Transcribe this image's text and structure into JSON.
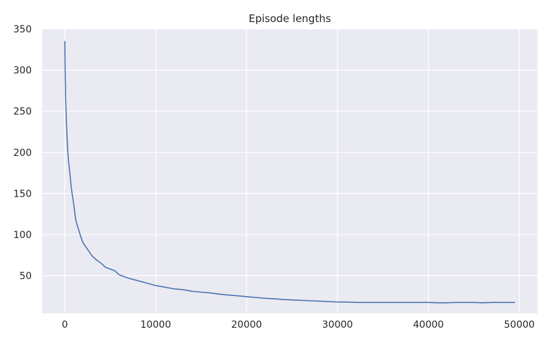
{
  "chart_data": {
    "type": "line",
    "title": "Episode lengths",
    "xlabel": "",
    "ylabel": "",
    "xlim": [
      -2500,
      52000
    ],
    "ylim": [
      4.3,
      350
    ],
    "xticks": [
      0,
      10000,
      20000,
      30000,
      40000,
      50000
    ],
    "xtick_labels": [
      "0",
      "10000",
      "20000",
      "30000",
      "40000",
      "50000"
    ],
    "yticks": [
      50,
      100,
      150,
      200,
      250,
      300,
      350
    ],
    "ytick_labels": [
      "50",
      "100",
      "150",
      "200",
      "250",
      "300",
      "350"
    ],
    "grid": true,
    "colors": {
      "background": "#eaeaf2",
      "grid": "#ffffff",
      "line": "#4c72b0",
      "text": "#262626"
    },
    "series": [
      {
        "name": "",
        "x": [
          0,
          50,
          100,
          150,
          200,
          300,
          400,
          500,
          600,
          700,
          800,
          900,
          1000,
          1200,
          1400,
          1600,
          1800,
          2000,
          2500,
          3000,
          3500,
          4000,
          4500,
          5000,
          5500,
          6000,
          7000,
          8000,
          9000,
          10000,
          11000,
          12000,
          13000,
          14000,
          15000,
          16000,
          17000,
          18000,
          19000,
          20000,
          21000,
          22000,
          23000,
          24000,
          25000,
          26000,
          27000,
          28000,
          29000,
          30000,
          31000,
          32000,
          33000,
          34000,
          35000,
          36000,
          37000,
          38000,
          39000,
          40000,
          41000,
          42000,
          43000,
          44000,
          45000,
          46000,
          47000,
          48000,
          49000,
          49500
        ],
        "y": [
          335,
          290,
          262,
          245,
          230,
          205,
          190,
          180,
          170,
          158,
          150,
          143,
          135,
          118,
          110,
          103,
          96,
          90,
          82,
          74,
          69,
          65,
          60,
          58,
          56,
          51,
          47,
          44,
          41,
          38,
          36,
          34,
          33,
          31,
          30,
          29,
          27.5,
          26.5,
          25.5,
          24.5,
          23.5,
          22.5,
          22,
          21,
          20.5,
          20,
          19.5,
          19,
          18.5,
          18,
          18,
          17.5,
          17.5,
          17.5,
          17.5,
          17.5,
          17.5,
          17.5,
          17.5,
          17.5,
          17,
          17,
          17.5,
          17.5,
          17.5,
          17,
          17.5,
          17.5,
          17.5,
          17.5
        ]
      }
    ]
  }
}
